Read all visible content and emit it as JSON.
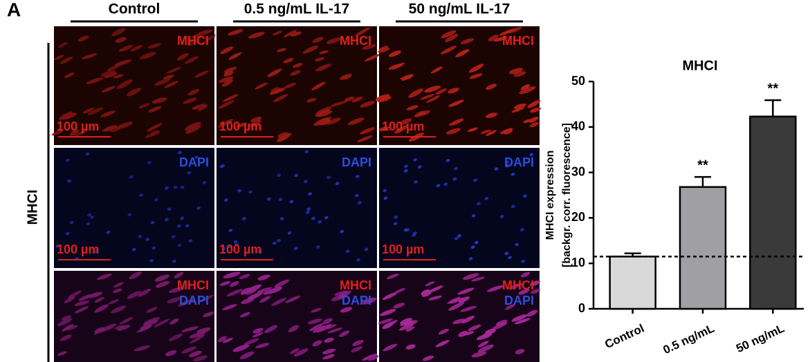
{
  "figure_label": "A",
  "columns": [
    "Control",
    "0.5 ng/mL IL-17",
    "50 ng/mL IL-17"
  ],
  "row_label": "MHCI",
  "panel_labels": [
    [
      "MHCI"
    ],
    [
      "DAPI"
    ],
    [
      "MHCI",
      "DAPI"
    ]
  ],
  "scale_bar": "100 µm",
  "chart_data": {
    "type": "bar",
    "title": "MHCI",
    "y_label": [
      "MHCI expression",
      "[backgr. corr. fluorescence]"
    ],
    "categories": [
      "Control",
      "0.5 ng/mL",
      "50 ng/mL"
    ],
    "values": [
      11.5,
      26.8,
      42.3
    ],
    "errors": [
      0.7,
      2.2,
      3.6
    ],
    "significance": [
      null,
      "**",
      "**"
    ],
    "colors": [
      "#d9d9d9",
      "#a0a0a4",
      "#3a3a3a"
    ],
    "reference_line": 11.5,
    "ylim": [
      0,
      50
    ],
    "yticks": [
      0,
      10,
      20,
      30,
      40,
      50
    ]
  }
}
